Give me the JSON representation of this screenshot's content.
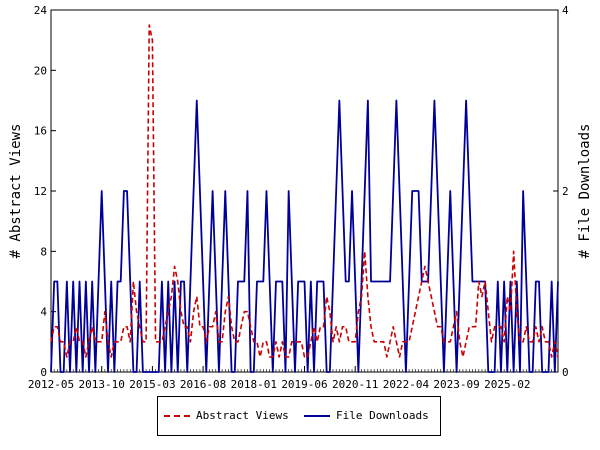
{
  "chart_data": {
    "type": "line",
    "title": "",
    "x_ticks": [
      "2012-05",
      "2013-10",
      "2015-03",
      "2016-08",
      "2018-01",
      "2019-06",
      "2020-11",
      "2022-04",
      "2023-09",
      "2025-02"
    ],
    "y_left": {
      "label": "# Abstract Views",
      "ticks": [
        0,
        4,
        8,
        12,
        16,
        20,
        24
      ],
      "range": [
        0,
        24
      ]
    },
    "y_right": {
      "label": "# File Downloads",
      "ticks": [
        0,
        2,
        4
      ],
      "range": [
        0,
        4
      ]
    },
    "legend_position": "bottom-center",
    "grid": false,
    "x_count": 161,
    "series": [
      {
        "name": "Abstract Views",
        "axis": "left",
        "color": "#cc0000",
        "style": "dashed",
        "values": [
          2,
          3,
          3,
          2,
          2,
          1,
          2,
          2,
          3,
          2,
          2,
          1,
          2,
          3,
          2,
          2,
          2,
          4,
          2,
          1,
          2,
          2,
          2,
          3,
          3,
          2,
          6,
          4,
          3,
          2,
          2,
          23,
          22,
          2,
          2,
          2,
          3,
          4,
          5,
          7,
          6,
          4,
          3,
          3,
          2,
          4,
          5,
          3,
          3,
          2,
          3,
          3,
          4,
          2,
          2,
          4,
          5,
          3,
          2,
          2,
          3,
          4,
          4,
          3,
          2,
          2,
          1,
          2,
          2,
          1,
          1,
          2,
          1,
          2,
          1,
          1,
          2,
          2,
          2,
          2,
          1,
          1,
          2,
          3,
          2,
          3,
          3,
          5,
          4,
          2,
          3,
          2,
          3,
          3,
          2,
          2,
          2,
          4,
          5,
          8,
          5,
          3,
          2,
          2,
          2,
          2,
          1,
          2,
          3,
          2,
          1,
          2,
          2,
          2,
          3,
          4,
          5,
          6,
          7,
          6,
          5,
          4,
          3,
          3,
          2,
          2,
          2,
          3,
          4,
          2,
          1,
          2,
          3,
          3,
          3,
          6,
          5,
          6,
          4,
          2,
          3,
          3,
          3,
          2,
          5,
          4,
          8,
          4,
          2,
          2,
          3,
          2,
          2,
          3,
          2,
          3,
          2,
          2,
          1,
          2,
          1
        ]
      },
      {
        "name": "File Downloads",
        "axis": "right",
        "color": "#000099",
        "style": "solid",
        "values": [
          0,
          1,
          1,
          0,
          0,
          1,
          0,
          1,
          0,
          1,
          0,
          1,
          0,
          1,
          0,
          1,
          2,
          1,
          0,
          1,
          0,
          1,
          1,
          2,
          2,
          1,
          0,
          0,
          1,
          0,
          0,
          0,
          0,
          0,
          0,
          1,
          0,
          1,
          0,
          1,
          0,
          1,
          1,
          0,
          1,
          2,
          3,
          2,
          1,
          0,
          1,
          2,
          1,
          0,
          1,
          2,
          1,
          0,
          0,
          1,
          1,
          1,
          2,
          0,
          0,
          1,
          1,
          1,
          2,
          1,
          0,
          1,
          1,
          1,
          0,
          2,
          1,
          0,
          1,
          1,
          1,
          0,
          1,
          0,
          1,
          1,
          1,
          0,
          0,
          1,
          2,
          3,
          2,
          1,
          1,
          2,
          1,
          0,
          1,
          2,
          3,
          1,
          1,
          1,
          1,
          1,
          1,
          1,
          2,
          3,
          2,
          1,
          0,
          1,
          2,
          2,
          2,
          1,
          1,
          1,
          2,
          3,
          2,
          1,
          0,
          1,
          2,
          1,
          0,
          1,
          2,
          3,
          2,
          1,
          1,
          1,
          1,
          1,
          0,
          0,
          0,
          1,
          0,
          1,
          0,
          1,
          0,
          1,
          0,
          2,
          1,
          0,
          0,
          1,
          1,
          0,
          0,
          0,
          1,
          0,
          1
        ]
      }
    ]
  }
}
